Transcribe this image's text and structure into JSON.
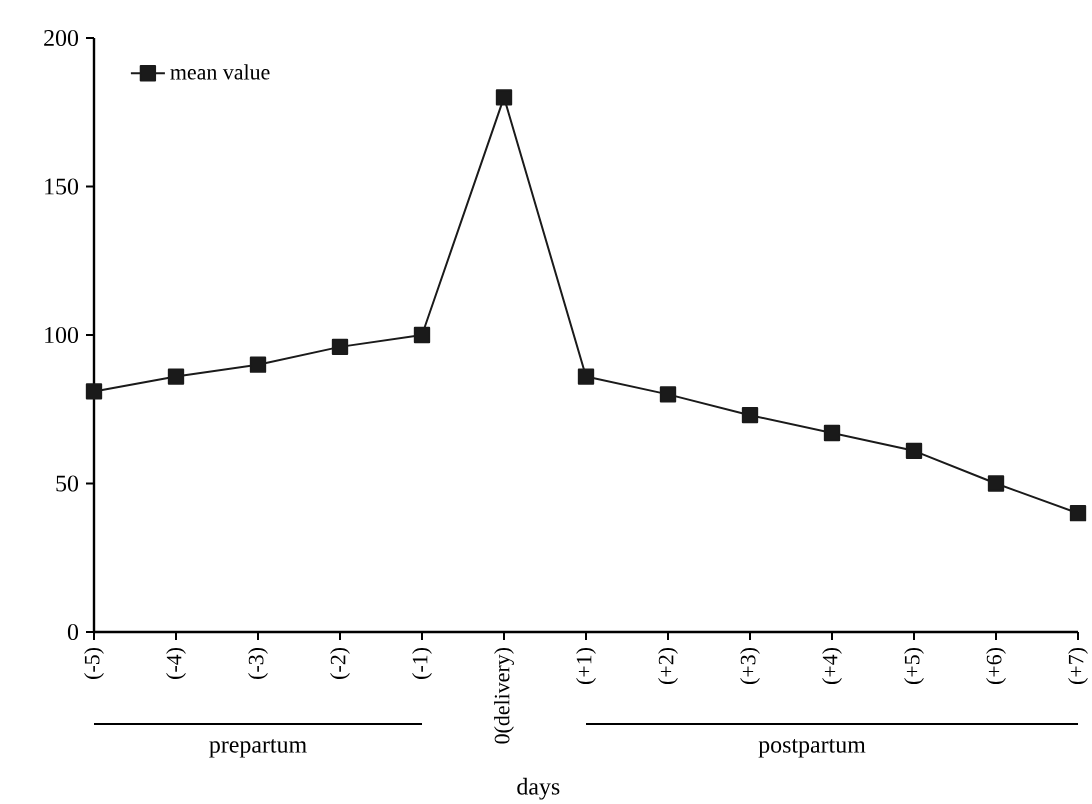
{
  "chart_data": {
    "type": "line",
    "xlabel": "days",
    "categories": [
      "(-5)",
      "(-4)",
      "(-3)",
      "(-2)",
      "(-1)",
      "0(delivery)",
      "(+1)",
      "(+2)",
      "(+3)",
      "(+4)",
      "(+5)",
      "(+6)",
      "(+7)"
    ],
    "series": [
      {
        "name": "mean value",
        "color": "#1a1a1a",
        "values": [
          81,
          86,
          90,
          96,
          100,
          180,
          86,
          80,
          73,
          67,
          61,
          50,
          40
        ]
      }
    ],
    "ylim": [
      0,
      200
    ],
    "yticks": [
      0,
      50,
      100,
      150,
      200
    ],
    "annotations": [
      "prepartum",
      "postpartum"
    ],
    "legend": "top left",
    "marker": "square",
    "line_style": "solid",
    "grid": false
  }
}
